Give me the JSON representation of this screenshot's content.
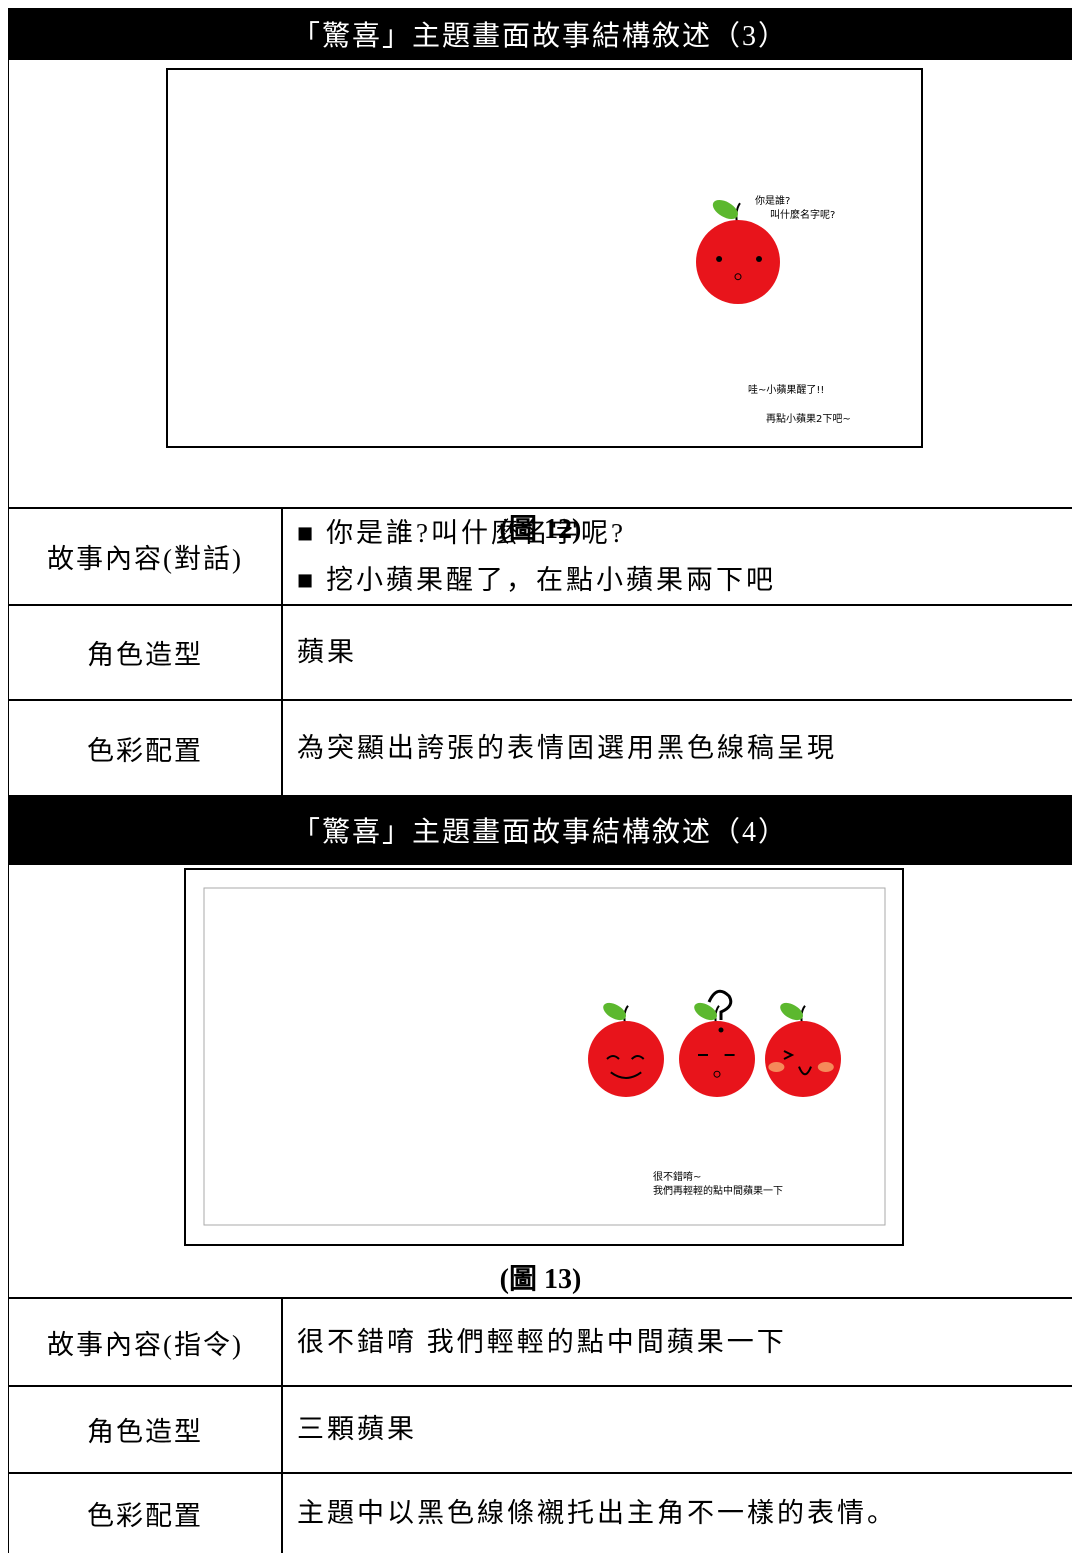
{
  "sections": [
    {
      "title": "「驚喜」主題畫面故事結構敘述（3）",
      "figure": {
        "texts": [
          "你是誰?",
          "叫什麼名字呢?",
          "哇~小蘋果醒了!!",
          "再點小蘋果2下吧~"
        ],
        "caption": "(圖 12)"
      },
      "rows": [
        {
          "label": "故事內容(對話)",
          "items": [
            "你是誰?叫什麼名字呢?",
            "挖小蘋果醒了，在點小蘋果兩下吧"
          ]
        },
        {
          "label": "角色造型",
          "items": [
            "蘋果"
          ]
        },
        {
          "label": "色彩配置",
          "items": [
            "為突顯出誇張的表情固選用黑色線稿呈現"
          ]
        }
      ]
    },
    {
      "title": "「驚喜」主題畫面故事結構敘述（4）",
      "figure": {
        "texts": [
          "很不錯唷~",
          "我們再輕輕的點中間蘋果一下"
        ],
        "caption": "(圖 13)"
      },
      "rows": [
        {
          "label": "故事內容(指令)",
          "items": [
            "很不錯唷 我們輕輕的點中間蘋果一下"
          ]
        },
        {
          "label": "角色造型",
          "items": [
            "三顆蘋果"
          ]
        },
        {
          "label": "色彩配置",
          "items": [
            "主題中以黑色線條襯托出主角不一樣的表情。"
          ]
        }
      ]
    }
  ]
}
